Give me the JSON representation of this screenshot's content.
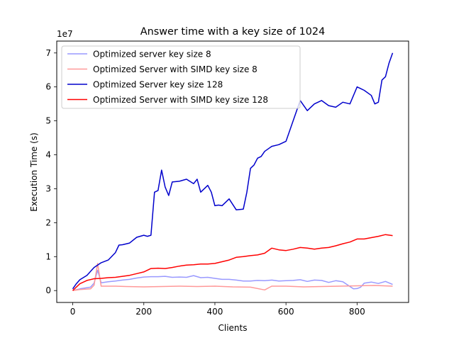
{
  "chart_data": {
    "type": "line",
    "title": "Answer time with a key size of 1024",
    "xlabel": "Clients",
    "ylabel": "Execution Time (s)",
    "y_offset_label": "1e7",
    "xlim": [
      -45,
      945
    ],
    "ylim": [
      -0.35,
      7.35
    ],
    "x_ticks": [
      0,
      200,
      400,
      600,
      800
    ],
    "y_ticks": [
      0,
      1,
      2,
      3,
      4,
      5,
      6,
      7
    ],
    "legend_position": "upper-left",
    "grid": false,
    "series": [
      {
        "name": "Optimized server key size 8",
        "color": "#9999ff",
        "x": [
          0,
          20,
          50,
          60,
          70,
          80,
          100,
          120,
          140,
          160,
          180,
          200,
          220,
          240,
          260,
          280,
          300,
          320,
          340,
          360,
          380,
          400,
          420,
          440,
          460,
          480,
          500,
          520,
          540,
          560,
          580,
          600,
          620,
          640,
          660,
          680,
          700,
          720,
          740,
          760,
          780,
          790,
          800,
          810,
          820,
          840,
          860,
          880,
          900
        ],
        "y": [
          0.0,
          0.05,
          0.1,
          0.22,
          0.6,
          0.23,
          0.26,
          0.28,
          0.31,
          0.33,
          0.37,
          0.4,
          0.41,
          0.41,
          0.42,
          0.39,
          0.4,
          0.39,
          0.44,
          0.38,
          0.39,
          0.36,
          0.33,
          0.33,
          0.31,
          0.28,
          0.28,
          0.3,
          0.29,
          0.31,
          0.28,
          0.29,
          0.3,
          0.32,
          0.27,
          0.31,
          0.3,
          0.24,
          0.29,
          0.26,
          0.12,
          0.05,
          0.06,
          0.1,
          0.22,
          0.25,
          0.21,
          0.27,
          0.18
        ]
      },
      {
        "name": "Optimized Server with SIMD key size 8",
        "color": "#ff9999",
        "x": [
          0,
          20,
          50,
          60,
          70,
          80,
          100,
          120,
          150,
          200,
          250,
          300,
          350,
          400,
          450,
          500,
          540,
          560,
          600,
          650,
          700,
          750,
          800,
          850,
          900
        ],
        "y": [
          0.0,
          0.03,
          0.05,
          0.16,
          0.8,
          0.13,
          0.13,
          0.13,
          0.12,
          0.11,
          0.12,
          0.13,
          0.12,
          0.13,
          0.11,
          0.1,
          0.02,
          0.13,
          0.13,
          0.11,
          0.12,
          0.13,
          0.14,
          0.15,
          0.13
        ]
      },
      {
        "name": "Optimized Server key size 128",
        "color": "#0000cc",
        "x": [
          0,
          10,
          20,
          40,
          60,
          80,
          100,
          120,
          130,
          140,
          160,
          180,
          200,
          210,
          220,
          230,
          240,
          250,
          260,
          270,
          280,
          300,
          320,
          340,
          350,
          360,
          380,
          390,
          400,
          410,
          420,
          440,
          460,
          480,
          490,
          500,
          510,
          520,
          530,
          540,
          560,
          580,
          600,
          610,
          620,
          630,
          640,
          650,
          660,
          680,
          700,
          720,
          740,
          760,
          780,
          800,
          810,
          820,
          840,
          850,
          860,
          870,
          880,
          890,
          900
        ],
        "y": [
          0.05,
          0.2,
          0.32,
          0.45,
          0.68,
          0.82,
          0.9,
          1.12,
          1.34,
          1.35,
          1.4,
          1.57,
          1.63,
          1.6,
          1.63,
          2.9,
          2.95,
          3.55,
          3.05,
          2.8,
          3.2,
          3.22,
          3.28,
          3.15,
          3.28,
          2.9,
          3.1,
          2.9,
          2.5,
          2.52,
          2.5,
          2.7,
          2.38,
          2.4,
          2.9,
          3.6,
          3.7,
          3.9,
          3.95,
          4.1,
          4.25,
          4.3,
          4.4,
          4.7,
          5.0,
          5.3,
          5.6,
          5.45,
          5.3,
          5.5,
          5.6,
          5.45,
          5.4,
          5.55,
          5.5,
          6.0,
          5.95,
          5.9,
          5.75,
          5.5,
          5.55,
          6.2,
          6.3,
          6.7,
          7.0
        ]
      },
      {
        "name": "Optimized Server with SIMD key size 128",
        "color": "#ff0000",
        "x": [
          0,
          20,
          40,
          60,
          80,
          100,
          120,
          140,
          160,
          180,
          200,
          220,
          240,
          260,
          280,
          300,
          320,
          340,
          360,
          380,
          400,
          420,
          440,
          460,
          480,
          500,
          520,
          540,
          560,
          580,
          600,
          620,
          640,
          660,
          680,
          700,
          720,
          740,
          760,
          780,
          800,
          820,
          840,
          860,
          880,
          900
        ],
        "y": [
          0.0,
          0.2,
          0.3,
          0.35,
          0.36,
          0.38,
          0.39,
          0.42,
          0.45,
          0.5,
          0.55,
          0.65,
          0.66,
          0.65,
          0.68,
          0.72,
          0.75,
          0.76,
          0.78,
          0.78,
          0.8,
          0.85,
          0.9,
          0.98,
          1.0,
          1.03,
          1.05,
          1.1,
          1.25,
          1.2,
          1.18,
          1.22,
          1.27,
          1.25,
          1.22,
          1.25,
          1.27,
          1.32,
          1.38,
          1.43,
          1.52,
          1.52,
          1.56,
          1.6,
          1.65,
          1.62
        ]
      }
    ]
  }
}
